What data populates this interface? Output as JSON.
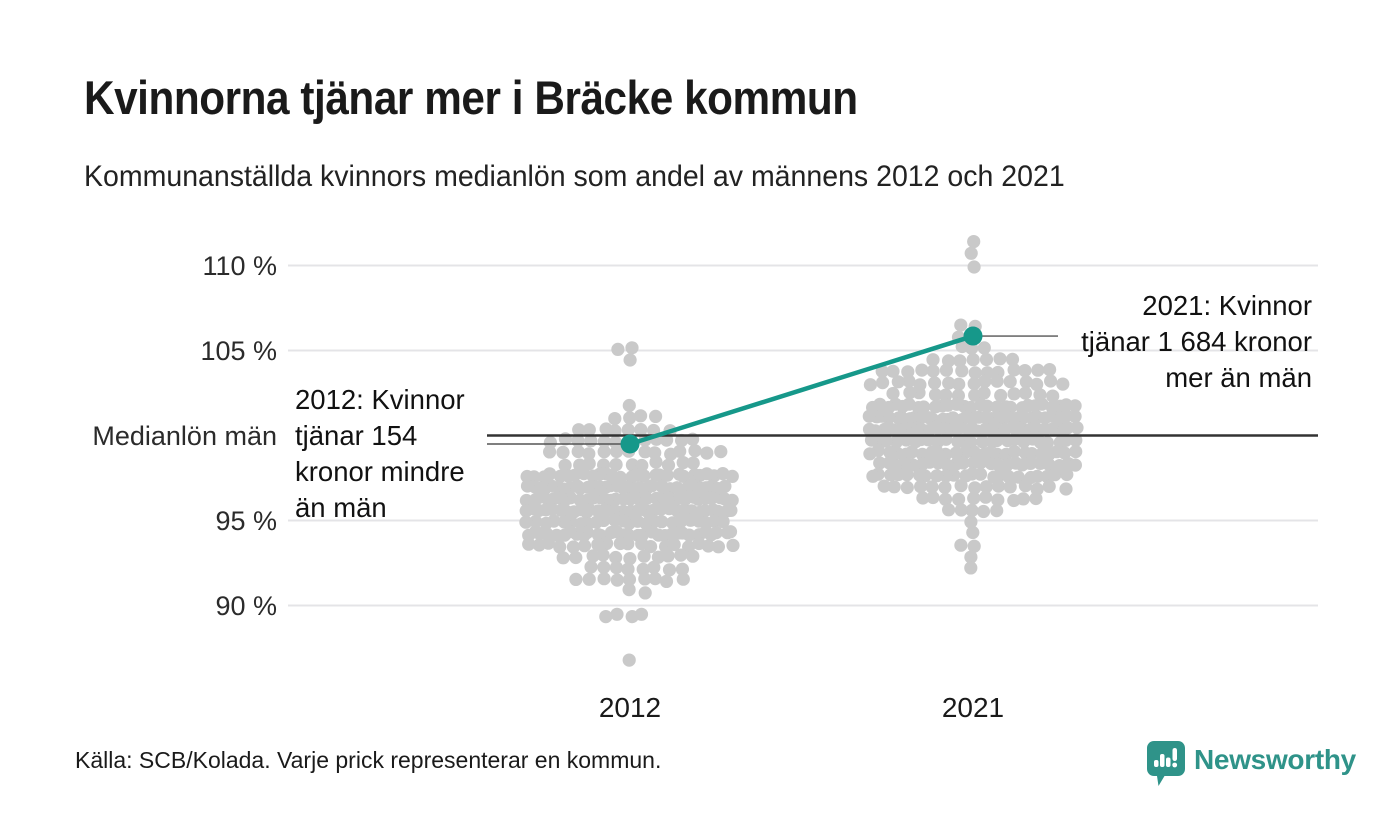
{
  "header": {
    "title": "Kvinnorna tjänar mer i Bräcke kommun",
    "subtitle": "Kommunanställda kvinnors medianlön som andel av männens 2012 och 2021"
  },
  "footer": {
    "source": "Källa: SCB/Kolada. Varje prick representerar en kommun.",
    "brand": "Newsworthy"
  },
  "colors": {
    "accent_teal": "#16988a",
    "dot_gray": "#c9c9c9",
    "grid": "#e4e4e7",
    "baseline": "#333333",
    "leader": "#555555",
    "logo_teal": "#2f9389",
    "text": "#1a1a1a"
  },
  "chart_data": {
    "type": "scatter",
    "variant": "beeswarm",
    "title": "Kvinnorna tjänar mer i Bräcke kommun",
    "subtitle": "Kommunanställda kvinnors medianlön som andel av männens 2012 och 2021",
    "unit": "% av männens medianlön",
    "categories": [
      "2012",
      "2021"
    ],
    "ylim": [
      86,
      112.5
    ],
    "grid": true,
    "yticks": [
      {
        "value": 110,
        "label": "110 %"
      },
      {
        "value": 105,
        "label": "105 %"
      },
      {
        "value": 100,
        "label": "Medianlön män"
      },
      {
        "value": 95,
        "label": "95 %"
      },
      {
        "value": 90,
        "label": "90 %"
      }
    ],
    "baseline": {
      "value": 100,
      "label": "Medianlön män"
    },
    "highlight": {
      "municipality": "Bräcke kommun",
      "series": [
        {
          "category": "2012",
          "pct_of_men": 99.5,
          "note_kronor": -154
        },
        {
          "category": "2021",
          "pct_of_men": 105.85,
          "note_kronor": 1684
        }
      ]
    },
    "annotations": [
      {
        "category": "2012",
        "side": "left",
        "lines": "2012: Kvinnor\ntjänar 154\nkronor mindre\nän män"
      },
      {
        "category": "2021",
        "side": "right",
        "lines": "2021: Kvinnor\ntjänar 1 684 kronor\nmer än män"
      }
    ],
    "swarms": [
      {
        "category": "2012",
        "count": 289,
        "center_pct": 95.9,
        "spread_pct": 2.25,
        "body_range": [
          89.3,
          105.4
        ],
        "min_pct": 86.6,
        "max_pct": 105.4,
        "outliers_pct": [
          86.6,
          89.2,
          89.4,
          104.3,
          104.9,
          105.4
        ],
        "seed": 7
      },
      {
        "category": "2021",
        "count": 289,
        "center_pct": 100.35,
        "spread_pct": 2.4,
        "body_range": [
          92.4,
          109.6
        ],
        "min_pct": 92.4,
        "max_pct": 111.6,
        "outliers_pct": [
          92.4,
          92.9,
          93.4,
          93.9,
          110.1,
          110.6,
          111.6
        ],
        "seed": 11
      }
    ]
  }
}
